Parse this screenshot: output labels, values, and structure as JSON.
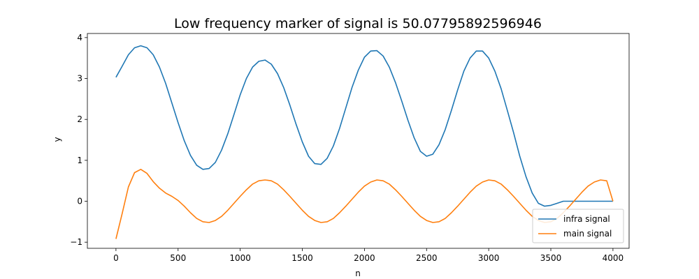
{
  "chart_data": {
    "type": "line",
    "title": "Low frequency marker of signal is 50.07795892596946",
    "xlabel": "n",
    "ylabel": "y",
    "xlim": [
      -230,
      4130
    ],
    "ylim": [
      -1.15,
      4.1
    ],
    "xticks": [
      0,
      500,
      1000,
      1500,
      2000,
      2500,
      3000,
      3500,
      4000
    ],
    "yticks": [
      -1,
      0,
      1,
      2,
      3,
      4
    ],
    "legend_position": "lower-right",
    "series": [
      {
        "name": "infra signal",
        "color": "#1f77b4",
        "x": [
          0,
          50,
          100,
          150,
          200,
          250,
          300,
          350,
          400,
          450,
          500,
          550,
          600,
          650,
          700,
          750,
          800,
          850,
          900,
          950,
          1000,
          1050,
          1100,
          1150,
          1200,
          1250,
          1300,
          1350,
          1400,
          1450,
          1500,
          1550,
          1600,
          1650,
          1700,
          1750,
          1800,
          1850,
          1900,
          1950,
          2000,
          2050,
          2100,
          2150,
          2200,
          2250,
          2300,
          2350,
          2400,
          2450,
          2500,
          2550,
          2600,
          2650,
          2700,
          2750,
          2800,
          2850,
          2900,
          2950,
          3000,
          3050,
          3100,
          3150,
          3200,
          3250,
          3300,
          3350,
          3400,
          3450,
          3500,
          3550,
          3600,
          3650,
          3700,
          3750,
          3800,
          3850,
          3900,
          3950,
          4000
        ],
        "y": [
          3.03,
          3.3,
          3.58,
          3.75,
          3.8,
          3.75,
          3.58,
          3.28,
          2.88,
          2.4,
          1.92,
          1.48,
          1.12,
          0.88,
          0.78,
          0.8,
          0.95,
          1.25,
          1.65,
          2.12,
          2.6,
          3.0,
          3.28,
          3.42,
          3.45,
          3.35,
          3.12,
          2.78,
          2.35,
          1.88,
          1.45,
          1.1,
          0.92,
          0.9,
          1.05,
          1.35,
          1.78,
          2.28,
          2.78,
          3.2,
          3.52,
          3.67,
          3.68,
          3.55,
          3.28,
          2.9,
          2.45,
          1.98,
          1.55,
          1.22,
          1.1,
          1.15,
          1.38,
          1.75,
          2.22,
          2.72,
          3.18,
          3.5,
          3.67,
          3.67,
          3.5,
          3.18,
          2.75,
          2.22,
          1.68,
          1.1,
          0.6,
          0.2,
          -0.05,
          -0.12,
          -0.1,
          -0.05,
          0.0,
          0.0,
          0.0,
          0.0,
          0.0,
          0.0,
          0.0,
          0.0,
          0.0
        ]
      },
      {
        "name": "main signal",
        "color": "#ff7f0e",
        "x": [
          0,
          50,
          100,
          150,
          200,
          250,
          300,
          350,
          400,
          450,
          500,
          550,
          600,
          650,
          700,
          750,
          800,
          850,
          900,
          950,
          1000,
          1050,
          1100,
          1150,
          1200,
          1250,
          1300,
          1350,
          1400,
          1450,
          1500,
          1550,
          1600,
          1650,
          1700,
          1750,
          1800,
          1850,
          1900,
          1950,
          2000,
          2050,
          2100,
          2150,
          2200,
          2250,
          2300,
          2350,
          2400,
          2450,
          2500,
          2550,
          2600,
          2650,
          2700,
          2750,
          2800,
          2850,
          2900,
          2950,
          3000,
          3050,
          3100,
          3150,
          3200,
          3250,
          3300,
          3350,
          3400,
          3450,
          3500,
          3550,
          3600,
          3650,
          3700,
          3750,
          3800,
          3850,
          3900,
          3950,
          4000
        ],
        "y": [
          -0.92,
          -0.3,
          0.35,
          0.7,
          0.78,
          0.68,
          0.48,
          0.32,
          0.2,
          0.12,
          0.02,
          -0.12,
          -0.28,
          -0.42,
          -0.5,
          -0.52,
          -0.47,
          -0.37,
          -0.22,
          -0.05,
          0.12,
          0.28,
          0.42,
          0.5,
          0.52,
          0.5,
          0.42,
          0.28,
          0.12,
          -0.05,
          -0.22,
          -0.37,
          -0.47,
          -0.52,
          -0.5,
          -0.42,
          -0.28,
          -0.12,
          0.05,
          0.22,
          0.37,
          0.47,
          0.52,
          0.5,
          0.42,
          0.28,
          0.12,
          -0.05,
          -0.22,
          -0.37,
          -0.47,
          -0.52,
          -0.5,
          -0.42,
          -0.28,
          -0.12,
          0.05,
          0.22,
          0.37,
          0.47,
          0.52,
          0.5,
          0.42,
          0.28,
          0.12,
          -0.05,
          -0.22,
          -0.37,
          -0.47,
          -0.52,
          -0.5,
          -0.42,
          -0.28,
          -0.12,
          0.05,
          0.22,
          0.37,
          0.47,
          0.52,
          0.5,
          0.0
        ]
      }
    ]
  }
}
